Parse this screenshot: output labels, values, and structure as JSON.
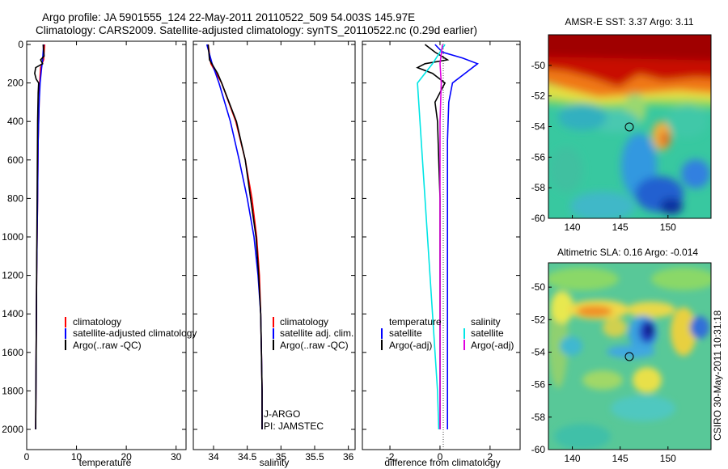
{
  "header": {
    "title_line1": "Argo profile: JA 5901555_124 22-May-2011 20110522_509 54.003S 145.97E",
    "title_line2": "Climatology: CARS2009. Satellite-adjusted climatology: synTS_20110522.nc (0.29d earlier)"
  },
  "credit": "CSIRO 30-May-2011 10:31:18",
  "colors": {
    "climatology": "#ff0000",
    "satellite": "#0000ff",
    "argo": "#000000",
    "sal_satellite": "#00e5e5",
    "sal_argo": "#e000e0"
  },
  "chart_data": [
    {
      "type": "line",
      "id": "temperature",
      "xlabel": "temperature",
      "ylabel": "",
      "xlim": [
        0,
        32
      ],
      "ylim": [
        2050,
        0
      ],
      "xticks": [
        0,
        10,
        20,
        30
      ],
      "yticks": [
        0,
        200,
        400,
        600,
        800,
        1000,
        1200,
        1400,
        1600,
        1800,
        2000
      ],
      "legend": [
        "climatology",
        "satellite-adjusted climatology",
        "Argo(..raw -QC)"
      ],
      "series": [
        {
          "name": "climatology",
          "color": "#ff0000",
          "depth": [
            0,
            80,
            120,
            200,
            300,
            500,
            800,
            1200,
            1600,
            2000
          ],
          "values": [
            3.6,
            3.4,
            2.8,
            2.6,
            2.5,
            2.3,
            2.2,
            2.0,
            1.9,
            1.8
          ]
        },
        {
          "name": "satellite-adjusted climatology",
          "color": "#0000ff",
          "depth": [
            0,
            80,
            120,
            200,
            300,
            500,
            800,
            1200,
            1600,
            2000
          ],
          "values": [
            3.4,
            3.2,
            3.0,
            2.7,
            2.5,
            2.3,
            2.2,
            2.0,
            1.9,
            1.8
          ]
        },
        {
          "name": "Argo(..raw -QC)",
          "color": "#000000",
          "depth": [
            0,
            60,
            80,
            100,
            120,
            150,
            180,
            200,
            250,
            400,
            800,
            1200,
            1600,
            2000
          ],
          "values": [
            3.3,
            3.5,
            2.8,
            3.2,
            1.8,
            1.6,
            1.9,
            2.4,
            2.3,
            2.2,
            2.1,
            2.0,
            1.9,
            1.8
          ]
        }
      ]
    },
    {
      "type": "line",
      "id": "salinity",
      "xlabel": "salinity",
      "xlim": [
        33.7,
        36.1
      ],
      "ylim": [
        2050,
        0
      ],
      "xticks": [
        34,
        34.5,
        35,
        35.5,
        36
      ],
      "legend": [
        "climatology",
        "satellite adj. clim.",
        "Argo(..raw -QC)"
      ],
      "annotation": [
        "J-ARGO",
        "PI: JAMSTEC"
      ],
      "series": [
        {
          "name": "climatology",
          "color": "#ff0000",
          "depth": [
            0,
            100,
            200,
            400,
            600,
            800,
            1000,
            1200,
            1400,
            1600,
            1800,
            2000
          ],
          "values": [
            33.92,
            33.96,
            34.12,
            34.33,
            34.47,
            34.57,
            34.64,
            34.68,
            34.7,
            34.71,
            34.72,
            34.72
          ]
        },
        {
          "name": "satellite adj. clim.",
          "color": "#0000ff",
          "depth": [
            0,
            100,
            200,
            400,
            600,
            800,
            1000,
            1200,
            1400,
            1600,
            1800,
            2000
          ],
          "values": [
            33.9,
            33.98,
            34.08,
            34.25,
            34.38,
            34.5,
            34.6,
            34.66,
            34.7,
            34.71,
            34.72,
            34.72
          ]
        },
        {
          "name": "Argo(..raw -QC)",
          "color": "#000000",
          "depth": [
            0,
            80,
            150,
            200,
            400,
            600,
            800,
            1000,
            1200,
            1400,
            1600,
            1800,
            2000
          ],
          "values": [
            33.92,
            33.94,
            34.06,
            34.12,
            34.34,
            34.47,
            34.55,
            34.63,
            34.67,
            34.7,
            34.71,
            34.72,
            34.72
          ]
        }
      ]
    },
    {
      "type": "line",
      "id": "difference",
      "xlabel": "difference from climatology",
      "xlim": [
        -3.1,
        3.2
      ],
      "ylim": [
        2050,
        0
      ],
      "xticks": [
        -2,
        0,
        2
      ],
      "legend_temperature": [
        "temperature",
        "satellite",
        "Argo(-adj)"
      ],
      "legend_salinity": [
        "salinity",
        "satellite",
        "Argo(-adj)"
      ],
      "series": [
        {
          "name": "temperature satellite",
          "color": "#0000ff",
          "depth": [
            0,
            40,
            70,
            100,
            150,
            200,
            300,
            500,
            800,
            1200,
            1600,
            2000
          ],
          "values": [
            -0.2,
            0.1,
            0.9,
            1.5,
            1.0,
            0.5,
            0.35,
            0.3,
            0.3,
            0.3,
            0.3,
            0.3
          ]
        },
        {
          "name": "temperature Argo(-adj)",
          "color": "#000000",
          "depth": [
            0,
            40,
            80,
            100,
            120,
            150,
            200,
            300,
            400,
            600,
            800,
            1200,
            1600,
            2000
          ],
          "values": [
            -0.6,
            -0.2,
            0.3,
            -0.6,
            -0.9,
            -0.3,
            0.2,
            -0.2,
            -0.1,
            -0.05,
            0.0,
            0.0,
            0.0,
            0.0
          ]
        },
        {
          "name": "salinity satellite",
          "color": "#00e5e5",
          "depth": [
            0,
            100,
            200,
            400,
            600,
            800,
            1000,
            1200,
            1400,
            1600,
            1800,
            2000
          ],
          "values": [
            0.2,
            -0.3,
            -0.9,
            -0.8,
            -0.7,
            -0.6,
            -0.5,
            -0.4,
            -0.3,
            -0.2,
            -0.1,
            -0.05
          ]
        },
        {
          "name": "salinity Argo(-adj)",
          "color": "#e000e0",
          "depth": [
            0,
            100,
            200,
            400,
            600,
            800,
            1200,
            1600,
            2000
          ],
          "values": [
            0.1,
            0.0,
            0.05,
            0.0,
            0.0,
            0.0,
            0.0,
            0.0,
            0.0
          ]
        }
      ]
    },
    {
      "type": "heatmap",
      "id": "amsr_sst",
      "title": "AMSR-E SST: 3.37 Argo: 3.11",
      "xticks": [
        140,
        145,
        150
      ],
      "yticks": [
        -50,
        -52,
        -54,
        -56,
        -58,
        -60
      ],
      "xlim": [
        137.5,
        154.5
      ],
      "ylim": [
        -60,
        -48
      ],
      "float_position": [
        145.97,
        -54.0
      ]
    },
    {
      "type": "heatmap",
      "id": "altimetric_sla",
      "title": "Altimetric SLA: 0.16 Argo: -0.014",
      "xticks": [
        140,
        145,
        150
      ],
      "yticks": [
        -50,
        -52,
        -54,
        -56,
        -58,
        -60
      ],
      "xlim": [
        137.5,
        154.5
      ],
      "ylim": [
        -60,
        -48.5
      ],
      "float_position": [
        145.97,
        -54.0
      ]
    }
  ]
}
